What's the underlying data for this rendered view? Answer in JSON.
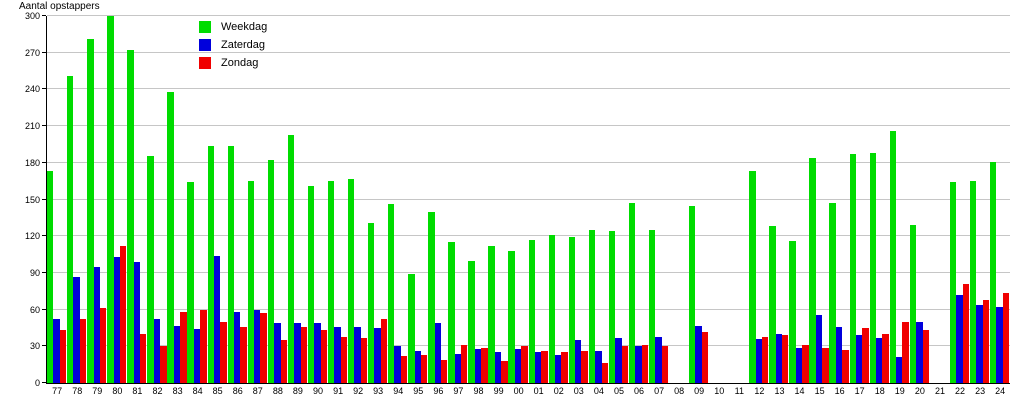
{
  "chart_data": {
    "type": "bar",
    "title": "Aantal opstappers",
    "ylabel": "",
    "xlabel": "",
    "ylim": [
      0,
      300
    ],
    "ytick_step": 30,
    "grid": true,
    "legend_position": "top-left-inside",
    "gridline_color": "#c6c6c6",
    "categories": [
      "77",
      "78",
      "79",
      "80",
      "81",
      "82",
      "83",
      "84",
      "85",
      "86",
      "87",
      "88",
      "89",
      "90",
      "91",
      "92",
      "93",
      "94",
      "95",
      "96",
      "97",
      "98",
      "99",
      "00",
      "01",
      "02",
      "03",
      "04",
      "05",
      "06",
      "07",
      "08",
      "09",
      "10",
      "11",
      "12",
      "13",
      "14",
      "15",
      "16",
      "17",
      "18",
      "19",
      "20",
      "21",
      "22",
      "23",
      "24"
    ],
    "series": [
      {
        "name": "Weekdag",
        "color": "#00dc00",
        "values": [
          173,
          251,
          281,
          300,
          272,
          186,
          238,
          164,
          194,
          194,
          165,
          182,
          203,
          161,
          165,
          167,
          131,
          146,
          89,
          140,
          115,
          100,
          112,
          108,
          117,
          121,
          119,
          125,
          124,
          147,
          125,
          null,
          145,
          null,
          null,
          173,
          128,
          116,
          184,
          147,
          187,
          188,
          206,
          129,
          null,
          164,
          165,
          181
        ]
      },
      {
        "name": "Zaterdag",
        "color": "#0000dc",
        "values": [
          52,
          87,
          95,
          103,
          99,
          52,
          47,
          44,
          104,
          58,
          60,
          49,
          49,
          49,
          46,
          46,
          45,
          30,
          26,
          49,
          24,
          28,
          25,
          28,
          25,
          23,
          35,
          26,
          37,
          30,
          38,
          null,
          47,
          null,
          null,
          36,
          40,
          29,
          56,
          46,
          39,
          37,
          21,
          50,
          null,
          72,
          64,
          62
        ]
      },
      {
        "name": "Zondag",
        "color": "#f00000",
        "values": [
          43,
          52,
          61,
          112,
          40,
          30,
          58,
          60,
          50,
          46,
          57,
          35,
          46,
          43,
          38,
          37,
          52,
          22,
          23,
          19,
          31,
          29,
          18,
          30,
          26,
          25,
          26,
          16,
          30,
          31,
          30,
          null,
          42,
          null,
          null,
          38,
          39,
          31,
          29,
          27,
          45,
          40,
          50,
          43,
          null,
          81,
          68,
          74
        ]
      }
    ]
  }
}
